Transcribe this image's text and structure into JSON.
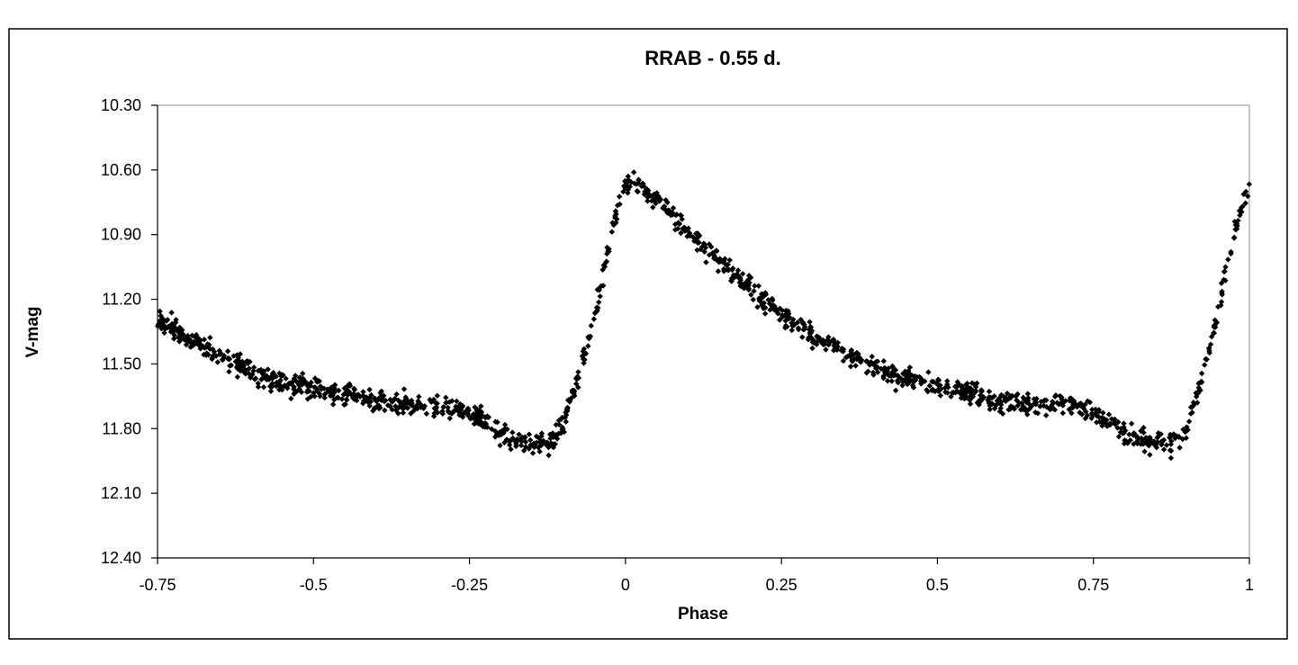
{
  "chart_data": {
    "type": "scatter",
    "title": "RRAB - 0.55 d.",
    "xlabel": "Phase",
    "ylabel": "V-mag",
    "xlim": [
      -0.75,
      1
    ],
    "ylim": [
      10.3,
      12.4
    ],
    "y_inverted": true,
    "grid": false,
    "legend": "none",
    "marker_color": "#000000",
    "marker": "diamond",
    "x_ticks": [
      "-0.75",
      "-0.5",
      "-0.25",
      "0",
      "0.25",
      "0.5",
      "0.75",
      "1"
    ],
    "y_ticks": [
      "10.30",
      "10.60",
      "10.90",
      "11.20",
      "11.50",
      "11.80",
      "12.10",
      "12.40"
    ],
    "x_tick_values": [
      -0.75,
      -0.5,
      -0.25,
      0,
      0.25,
      0.5,
      0.75,
      1
    ],
    "y_tick_values": [
      10.3,
      10.6,
      10.9,
      11.2,
      11.5,
      11.8,
      12.1,
      12.4
    ],
    "light_curve_trend": {
      "note": "dense cloud of ~1500 observations folded on period; curve repeats with period 1.0 in phase",
      "phase": [
        -0.75,
        -0.7,
        -0.65,
        -0.6,
        -0.55,
        -0.5,
        -0.45,
        -0.4,
        -0.35,
        -0.3,
        -0.25,
        -0.22,
        -0.2,
        -0.18,
        -0.15,
        -0.12,
        -0.1,
        -0.08,
        -0.06,
        -0.04,
        -0.02,
        0.0,
        0.02,
        0.05,
        0.1,
        0.15,
        0.2,
        0.25,
        0.3,
        0.35,
        0.4,
        0.45,
        0.5,
        0.55,
        0.6,
        0.65,
        0.7,
        0.75,
        0.78,
        0.8,
        0.82,
        0.85,
        0.88,
        0.9,
        0.92,
        0.94,
        0.96,
        0.98,
        1.0
      ],
      "vmag": [
        11.3,
        11.38,
        11.46,
        11.53,
        11.58,
        11.61,
        11.64,
        11.67,
        11.69,
        11.69,
        11.72,
        11.77,
        11.82,
        11.85,
        11.87,
        11.87,
        11.78,
        11.6,
        11.4,
        11.15,
        10.85,
        10.65,
        10.67,
        10.73,
        10.88,
        11.02,
        11.15,
        11.27,
        11.37,
        11.45,
        11.52,
        11.57,
        11.61,
        11.64,
        11.67,
        11.69,
        11.69,
        11.72,
        11.77,
        11.82,
        11.85,
        11.87,
        11.87,
        11.8,
        11.6,
        11.38,
        11.1,
        10.85,
        10.65
      ],
      "scatter_mag": 0.035
    }
  }
}
